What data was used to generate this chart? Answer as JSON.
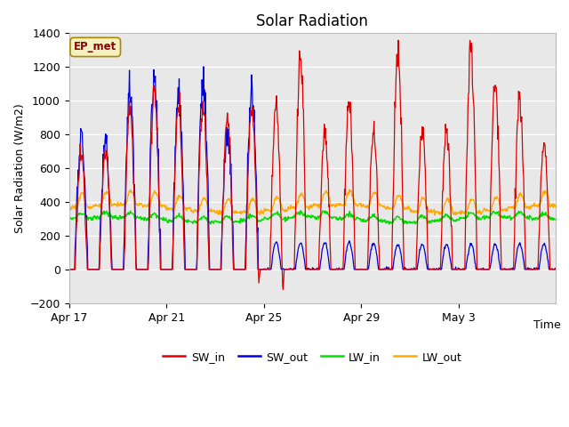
{
  "title": "Solar Radiation",
  "xlabel": "Time",
  "ylabel": "Solar Radiation (W/m2)",
  "ylim": [
    -200,
    1400
  ],
  "yticks": [
    -200,
    0,
    200,
    400,
    600,
    800,
    1000,
    1200,
    1400
  ],
  "x_tick_labels": [
    "Apr 17",
    "Apr 21",
    "Apr 25",
    "Apr 29",
    "May 3"
  ],
  "x_tick_positions": [
    0,
    192,
    384,
    576,
    768
  ],
  "series_colors": {
    "SW_in": "#dd0000",
    "SW_out": "#0000dd",
    "LW_in": "#00dd00",
    "LW_out": "#ffaa00"
  },
  "legend_label": "EP_met",
  "plot_bg_color": "#e8e8e8",
  "n_days": 20,
  "samples_per_day": 48,
  "total_samples": 960
}
